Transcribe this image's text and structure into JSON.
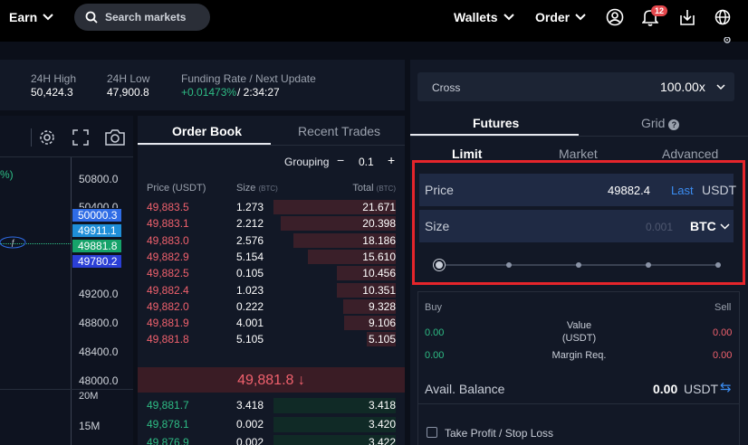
{
  "nav": {
    "earn": "Earn",
    "search_placeholder": "Search markets",
    "wallets": "Wallets",
    "order": "Order",
    "notif_count": "12"
  },
  "stats": {
    "high_label": "24H High",
    "high_val": "50,424.3",
    "low_label": "24H Low",
    "low_val": "47,900.8",
    "funding_label": "Funding Rate / Next Update",
    "funding_rate": "+0.01473%",
    "next_update": "/ 2:34:27"
  },
  "chart": {
    "pct_fragment": "%)",
    "ticks": [
      "50800.0",
      "50400.0",
      "49200.0",
      "48800.0",
      "48400.0",
      "48000.0",
      "20M",
      "15M"
    ],
    "tags": [
      {
        "value": "50000.3",
        "color": "#2f6ce5"
      },
      {
        "value": "49911.1",
        "color": "#1f8fd8"
      },
      {
        "value": "49881.8",
        "color": "#16a36a"
      },
      {
        "value": "49780.2",
        "color": "#2b3fd6"
      }
    ]
  },
  "orderbook": {
    "tab_book": "Order Book",
    "tab_trades": "Recent Trades",
    "grouping_label": "Grouping",
    "grouping_value": "0.1",
    "col_price": "Price (USDT)",
    "col_size": "Size",
    "col_size_unit": "(BTC)",
    "col_total": "Total",
    "col_total_unit": "(BTC)",
    "asks": [
      {
        "price": "49,883.5",
        "size": "1.273",
        "total": "21.671",
        "depth": 1.0
      },
      {
        "price": "49,883.1",
        "size": "2.212",
        "total": "20.398",
        "depth": 0.94
      },
      {
        "price": "49,883.0",
        "size": "2.576",
        "total": "18.186",
        "depth": 0.84
      },
      {
        "price": "49,882.9",
        "size": "5.154",
        "total": "15.610",
        "depth": 0.72
      },
      {
        "price": "49,882.5",
        "size": "0.105",
        "total": "10.456",
        "depth": 0.48
      },
      {
        "price": "49,882.4",
        "size": "1.023",
        "total": "10.351",
        "depth": 0.48
      },
      {
        "price": "49,882.0",
        "size": "0.222",
        "total": "9.328",
        "depth": 0.43
      },
      {
        "price": "49,881.9",
        "size": "4.001",
        "total": "9.106",
        "depth": 0.42
      },
      {
        "price": "49,881.8",
        "size": "5.105",
        "total": "5.105",
        "depth": 0.24
      }
    ],
    "mid_price": "49,881.8 ↓",
    "bids": [
      {
        "price": "49,881.7",
        "size": "3.418",
        "total": "3.418"
      },
      {
        "price": "49,878.1",
        "size": "0.002",
        "total": "3.420"
      },
      {
        "price": "49,876.9",
        "size": "0.002",
        "total": "3.422"
      }
    ]
  },
  "order_form": {
    "margin_mode": "Cross",
    "leverage": "100.00x",
    "tab_futures": "Futures",
    "tab_grid": "Grid",
    "type_limit": "Limit",
    "type_market": "Market",
    "type_advanced": "Advanced",
    "price_label": "Price",
    "price_value": "49882.4",
    "price_last": "Last",
    "price_unit": "USDT",
    "size_label": "Size",
    "size_placeholder": "0.001",
    "size_unit": "BTC",
    "buy_label": "Buy",
    "sell_label": "Sell",
    "value_label": "Value",
    "value_unit": "(USDT)",
    "buy_value": "0.00",
    "sell_value": "0.00",
    "margin_label": "Margin Req.",
    "buy_margin": "0.00",
    "sell_margin": "0.00",
    "avail_label": "Avail. Balance",
    "avail_value": "0.00",
    "avail_unit": "USDT",
    "tpsl_label": "Take Profit / Stop Loss"
  },
  "colors": {
    "accent_red": "#e5252b",
    "ask_red": "#f0616d",
    "bid_green": "#2ebd85",
    "link_blue": "#3b8cf0"
  }
}
